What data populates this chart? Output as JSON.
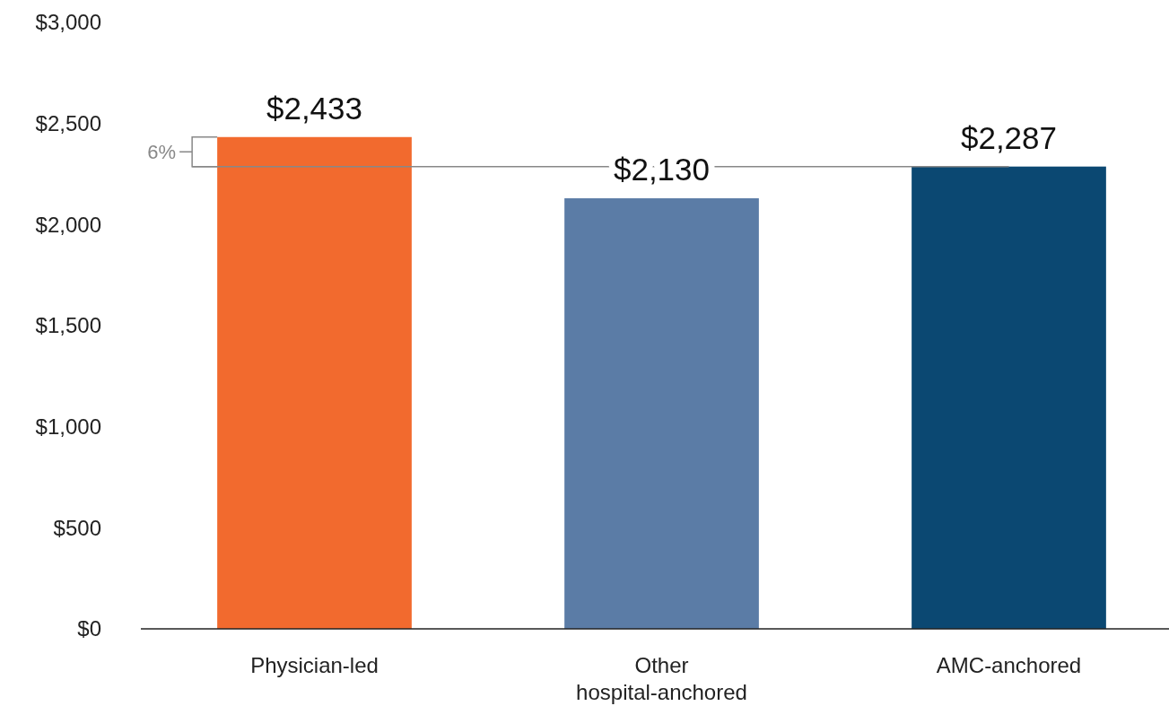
{
  "chart_data": {
    "type": "bar",
    "categories": [
      "Physician-led",
      "Other hospital-anchored",
      "AMC-anchored"
    ],
    "values": [
      2433,
      2130,
      2287
    ],
    "colors": [
      "#f26a2e",
      "#5b7ca6",
      "#0b4872"
    ],
    "ylim": [
      0,
      3000
    ],
    "yticks": [
      {
        "value": 0,
        "label": "$0"
      },
      {
        "value": 500,
        "label": "$500"
      },
      {
        "value": 1000,
        "label": "$1,000"
      },
      {
        "value": 1500,
        "label": "$1,500"
      },
      {
        "value": 2000,
        "label": "$2,000"
      },
      {
        "value": 2500,
        "label": "$2,500"
      },
      {
        "value": 3000,
        "label": "$3,000"
      }
    ],
    "value_labels": [
      "$2,433",
      "$2,130",
      "$2,287"
    ],
    "ref_lines": [
      {
        "axis": "y",
        "value": 2287,
        "color": "#888888"
      }
    ],
    "annotations": [
      "6%"
    ],
    "grid": false
  }
}
